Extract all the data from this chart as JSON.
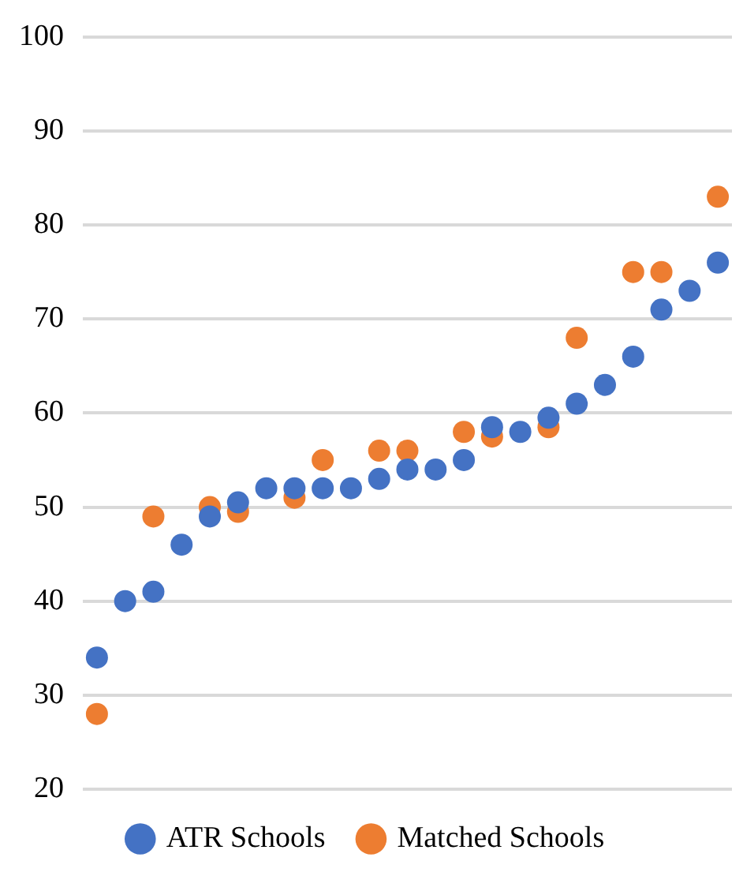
{
  "chart_data": {
    "type": "scatter",
    "categories": [
      null,
      null,
      null,
      null,
      null,
      null,
      null,
      null,
      null,
      null,
      null,
      null,
      null,
      null,
      null,
      null,
      null,
      null,
      null,
      null,
      null,
      null,
      null
    ],
    "series": [
      {
        "name": "ATR Schools",
        "color": "#4472c4",
        "values": [
          34,
          40,
          41,
          46,
          49,
          50.5,
          52,
          52,
          52,
          52,
          53,
          54,
          54,
          55,
          58.5,
          58,
          59.5,
          61,
          63,
          66,
          71,
          73,
          76
        ]
      },
      {
        "name": "Matched Schools",
        "color": "#ed7d31",
        "values": [
          28,
          null,
          49,
          null,
          50,
          49.5,
          null,
          51,
          55,
          null,
          56,
          56,
          null,
          58,
          57.5,
          null,
          58.5,
          68,
          null,
          75,
          75,
          null,
          83
        ]
      }
    ],
    "ylim": [
      20,
      100
    ],
    "yticks": [
      20,
      30,
      40,
      50,
      60,
      70,
      80,
      90,
      100
    ],
    "grid": "y",
    "legend": "bottom",
    "marker": "circle",
    "tick_labels": "y"
  }
}
